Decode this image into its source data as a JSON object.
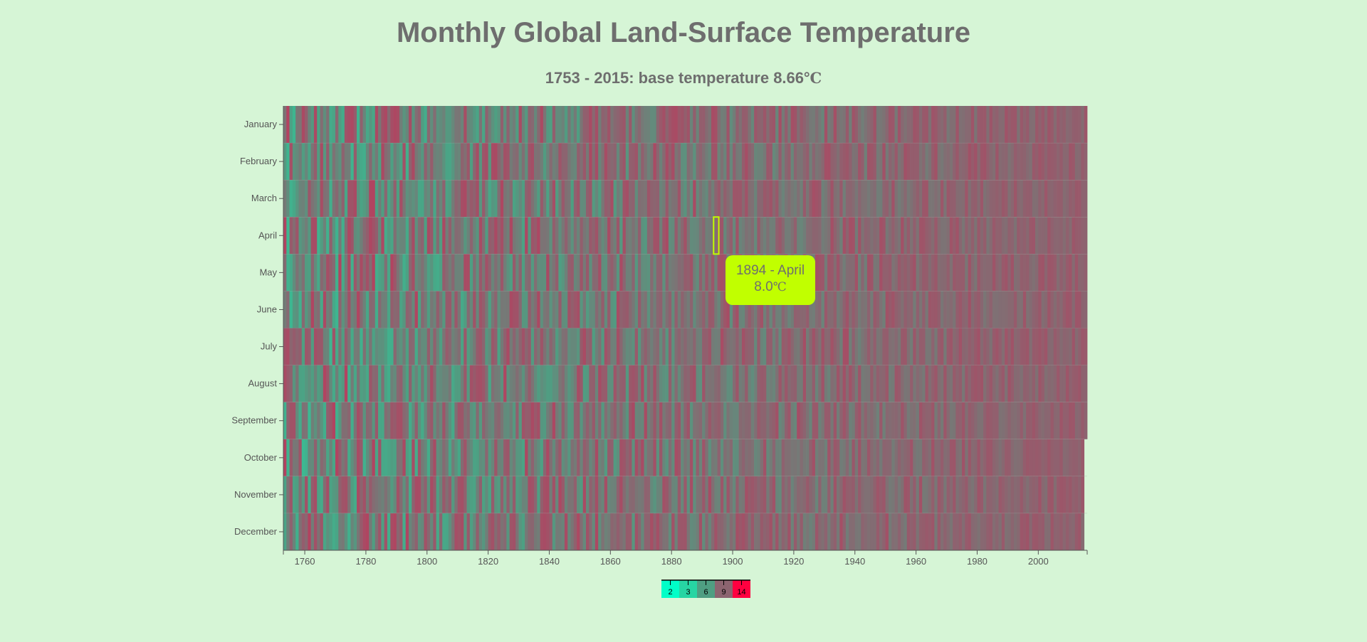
{
  "title": "Monthly Global Land-Surface Temperature",
  "subtitle": {
    "text": "1753 - 2015: base temperature 8.66",
    "unit": "℃"
  },
  "tooltip": {
    "year_month": "1894 - April",
    "value": "8.0",
    "unit": "℃"
  },
  "chart_data": {
    "type": "heatmap",
    "title": "Monthly Global Land-Surface Temperature",
    "base_temperature": 8.66,
    "x_range": [
      1753,
      2015
    ],
    "y_categories": [
      "January",
      "February",
      "March",
      "April",
      "May",
      "June",
      "July",
      "August",
      "September",
      "October",
      "November",
      "December"
    ],
    "x_ticks": [
      1760,
      1780,
      1800,
      1820,
      1840,
      1860,
      1880,
      1900,
      1920,
      1940,
      1960,
      1980,
      2000
    ],
    "last_full_year": 2015,
    "last_year_months": 9,
    "legend": {
      "values": [
        2,
        3,
        6,
        9,
        14
      ],
      "colors": [
        "#00ffc8",
        "#27d5a3",
        "#4f9e82",
        "#8c6470",
        "#ff0040"
      ]
    },
    "trend": {
      "early_variance": "high",
      "late_bias": "warm"
    },
    "highlight": {
      "year": 1894,
      "month": "April",
      "temperature": 8.0,
      "color": "#c1ff00"
    }
  }
}
